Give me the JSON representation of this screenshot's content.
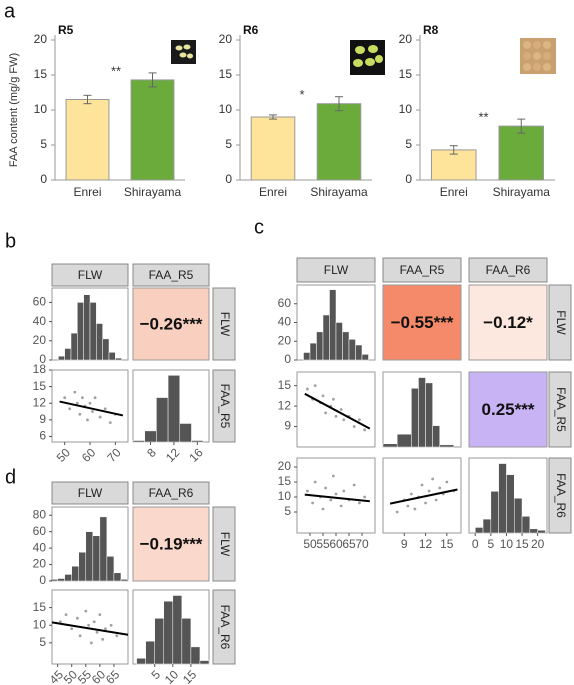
{
  "chart_data": [
    {
      "type": "bar",
      "panel_label": "a",
      "title": "R5",
      "ylabel": "FAA content (mg/g FW)",
      "categories": [
        "Enrei",
        "Shirayama"
      ],
      "values": [
        11.5,
        14.3
      ],
      "errors": [
        0.6,
        1.0
      ],
      "colors": [
        "#fde49a",
        "#6aab3c"
      ],
      "ylim": [
        0,
        20
      ],
      "yticks": [
        0,
        5,
        10,
        15,
        20
      ],
      "annotation": "**"
    },
    {
      "type": "bar",
      "title": "R6",
      "categories": [
        "Enrei",
        "Shirayama"
      ],
      "values": [
        9.0,
        10.9
      ],
      "errors": [
        0.3,
        1.0
      ],
      "colors": [
        "#fde49a",
        "#6aab3c"
      ],
      "ylim": [
        0,
        20
      ],
      "yticks": [
        0,
        5,
        10,
        15,
        20
      ],
      "annotation": "*"
    },
    {
      "type": "bar",
      "title": "R8",
      "categories": [
        "Enrei",
        "Shirayama"
      ],
      "values": [
        4.3,
        7.7
      ],
      "errors": [
        0.6,
        1.0
      ],
      "colors": [
        "#fde49a",
        "#6aab3c"
      ],
      "ylim": [
        0,
        20
      ],
      "yticks": [
        0,
        5,
        10,
        15,
        20
      ],
      "annotation": "**"
    },
    {
      "type": "pair",
      "panel_label": "b",
      "count_lim": [
        0,
        75
      ],
      "count_ticks": [
        0,
        20,
        40,
        60
      ],
      "variables": [
        {
          "name": "FLW",
          "lim": [
            45,
            75
          ],
          "xticks": [
            50,
            60,
            70
          ],
          "hist": {
            "bins": [
              47.5,
              50,
              52.5,
              55,
              57.5,
              60,
              62.5,
              65,
              67.5,
              70,
              72.5
            ],
            "counts": [
              4,
              12,
              28,
              60,
              68,
              60,
              38,
              22,
              8,
              2
            ]
          }
        },
        {
          "name": "FAA_R5",
          "lim": [
            5,
            18
          ],
          "xticks": [
            8,
            12,
            16
          ],
          "yticks": [
            6,
            9,
            12,
            15,
            18
          ],
          "hist": {
            "bins": [
              5,
              7,
              9,
              11,
              13,
              15,
              17
            ],
            "counts": [
              2,
              15,
              60,
              90,
              25,
              2
            ]
          }
        }
      ],
      "correlations": [
        {
          "label": "−0.26***",
          "value": -0.26,
          "color": "#f9cfc0"
        }
      ],
      "scatters": [
        {
          "x": [
            50,
            52,
            54,
            55,
            56,
            57,
            58,
            59,
            60,
            61,
            62,
            64,
            66,
            68,
            70
          ],
          "y": [
            13,
            11,
            14,
            12,
            10,
            13,
            11.5,
            9,
            12,
            10.5,
            13,
            9.5,
            11,
            8.5,
            10
          ],
          "fit": {
            "x": [
              48,
              73
            ],
            "y": [
              12.3,
              9.8
            ]
          }
        }
      ]
    },
    {
      "type": "pair",
      "panel_label": "c",
      "count_lim": [
        0,
        80
      ],
      "count_ticks": [
        0,
        20,
        40,
        60
      ],
      "variables": [
        {
          "name": "FLW",
          "lim": [
            45,
            75
          ],
          "xticks": [
            50,
            55,
            60,
            65,
            70
          ],
          "hist": {
            "bins": [
              47.5,
              50,
              52.5,
              55,
              57.5,
              60,
              62.5,
              65,
              67.5,
              70,
              72.5
            ],
            "counts": [
              8,
              18,
              30,
              48,
              75,
              40,
              30,
              22,
              16,
              6
            ]
          }
        },
        {
          "name": "FAA_R5",
          "lim": [
            6,
            17
          ],
          "xticks": [
            9,
            12,
            15
          ],
          "yticks": [
            9,
            12,
            15
          ],
          "hist": {
            "bins": [
              6,
              8,
              10,
              11,
              12,
              13,
              14,
              16
            ],
            "counts": [
              3,
              12,
              55,
              65,
              60,
              20,
              2
            ]
          }
        },
        {
          "name": "FAA_R6",
          "lim": [
            -2,
            23
          ],
          "xticks": [
            0,
            5,
            10,
            15,
            20
          ],
          "yticks": [
            5,
            10,
            15,
            20
          ],
          "hist": {
            "bins": [
              0,
              2.5,
              5,
              7.5,
              10,
              12.5,
              15,
              17.5,
              20,
              22.5
            ],
            "counts": [
              4,
              10,
              30,
              50,
              42,
              25,
              12,
              3,
              2
            ]
          }
        }
      ],
      "correlations": [
        {
          "label": "−0.55***",
          "value": -0.55,
          "color": "#f58a6a"
        },
        {
          "label": "−0.12*",
          "value": -0.12,
          "color": "#fde8df"
        },
        {
          "label": "0.25***",
          "value": 0.25,
          "color": "#c8b3f5"
        }
      ],
      "scatters": [
        {
          "x": [
            49,
            51,
            52,
            54,
            55,
            56,
            58,
            59,
            60,
            62,
            63,
            65,
            67,
            69,
            71
          ],
          "y": [
            14.5,
            13,
            15,
            12.5,
            13.5,
            11,
            12,
            13,
            10.5,
            11.5,
            10,
            10.5,
            9,
            10,
            8.5
          ],
          "fit": {
            "x": [
              48,
              73
            ],
            "y": [
              13.8,
              8.7
            ]
          }
        },
        {
          "x": [
            49,
            51,
            52,
            54,
            55,
            56,
            58,
            59,
            60,
            62,
            63,
            65,
            67,
            69,
            71
          ],
          "y": [
            12,
            8,
            15,
            10,
            6,
            13,
            9,
            17,
            11,
            7,
            12,
            9,
            14,
            8,
            10
          ],
          "fit": {
            "x": [
              48,
              73
            ],
            "y": [
              10.8,
              8.6
            ]
          }
        },
        {
          "x": [
            8,
            9,
            9.5,
            10,
            10.5,
            11,
            11.5,
            12,
            12.5,
            13,
            13.5,
            14,
            14.5,
            15,
            16
          ],
          "y": [
            5,
            9,
            7,
            11,
            6,
            10,
            14,
            8,
            12,
            16,
            9,
            13,
            11,
            15,
            12
          ],
          "fit": {
            "x": [
              7,
              16.5
            ],
            "y": [
              7.8,
              12.5
            ]
          }
        }
      ]
    },
    {
      "type": "pair",
      "panel_label": "d",
      "count_lim": [
        0,
        90
      ],
      "count_ticks": [
        0,
        20,
        40,
        60,
        80
      ],
      "variables": [
        {
          "name": "FLW",
          "lim": [
            43,
            70
          ],
          "xticks": [
            45,
            50,
            55,
            60,
            65
          ],
          "hist": {
            "bins": [
              42.5,
              45,
              47.5,
              50,
              52.5,
              55,
              57.5,
              60,
              62.5,
              65,
              67.5,
              70
            ],
            "counts": [
              2,
              3,
              8,
              18,
              35,
              60,
              55,
              78,
              30,
              10,
              2
            ]
          }
        },
        {
          "name": "FAA_R6",
          "lim": [
            -1,
            20
          ],
          "xticks": [
            5,
            10,
            15
          ],
          "yticks": [
            5,
            10,
            15
          ],
          "hist": {
            "bins": [
              0,
              2.5,
              5,
              7.5,
              10,
              12.5,
              15,
              17.5,
              20
            ],
            "counts": [
              5,
              20,
              40,
              55,
              60,
              40,
              15,
              3
            ]
          }
        }
      ],
      "correlations": [
        {
          "label": "−0.19***",
          "value": -0.19,
          "color": "#fbd8cc"
        }
      ],
      "scatters": [
        {
          "x": [
            46,
            48,
            50,
            52,
            53,
            55,
            56,
            57,
            58,
            59,
            60,
            61,
            62,
            64,
            66
          ],
          "y": [
            11,
            13,
            9,
            12,
            7,
            14,
            10,
            5,
            11,
            8,
            13,
            6,
            9,
            10,
            7
          ],
          "fit": {
            "x": [
              43,
              70
            ],
            "y": [
              10.8,
              7.3
            ]
          }
        }
      ]
    }
  ]
}
